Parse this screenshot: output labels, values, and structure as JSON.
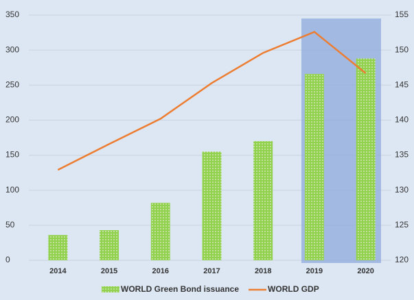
{
  "chart_data": {
    "type": "bar-line",
    "categories": [
      "2014",
      "2015",
      "2016",
      "2017",
      "2018",
      "2019",
      "2020"
    ],
    "series": [
      {
        "name": "WORLD Green Bond issuance",
        "type": "bar",
        "color": "#92d050",
        "values": [
          36,
          43,
          82,
          155,
          170,
          266,
          288
        ]
      },
      {
        "name": "WORLD GDP",
        "type": "line",
        "axis": "y2",
        "color": "#ed7d31",
        "values": [
          132.9,
          136.6,
          140.2,
          145.3,
          149.6,
          152.6,
          146.7
        ]
      }
    ],
    "ylim": [
      0,
      350
    ],
    "yticks": [
      0,
      50,
      100,
      150,
      200,
      250,
      300,
      350
    ],
    "y2lim": [
      120,
      155
    ],
    "y2ticks": [
      120,
      125,
      130,
      135,
      140,
      145,
      150,
      155
    ],
    "grid": true,
    "legend": "bottom"
  }
}
